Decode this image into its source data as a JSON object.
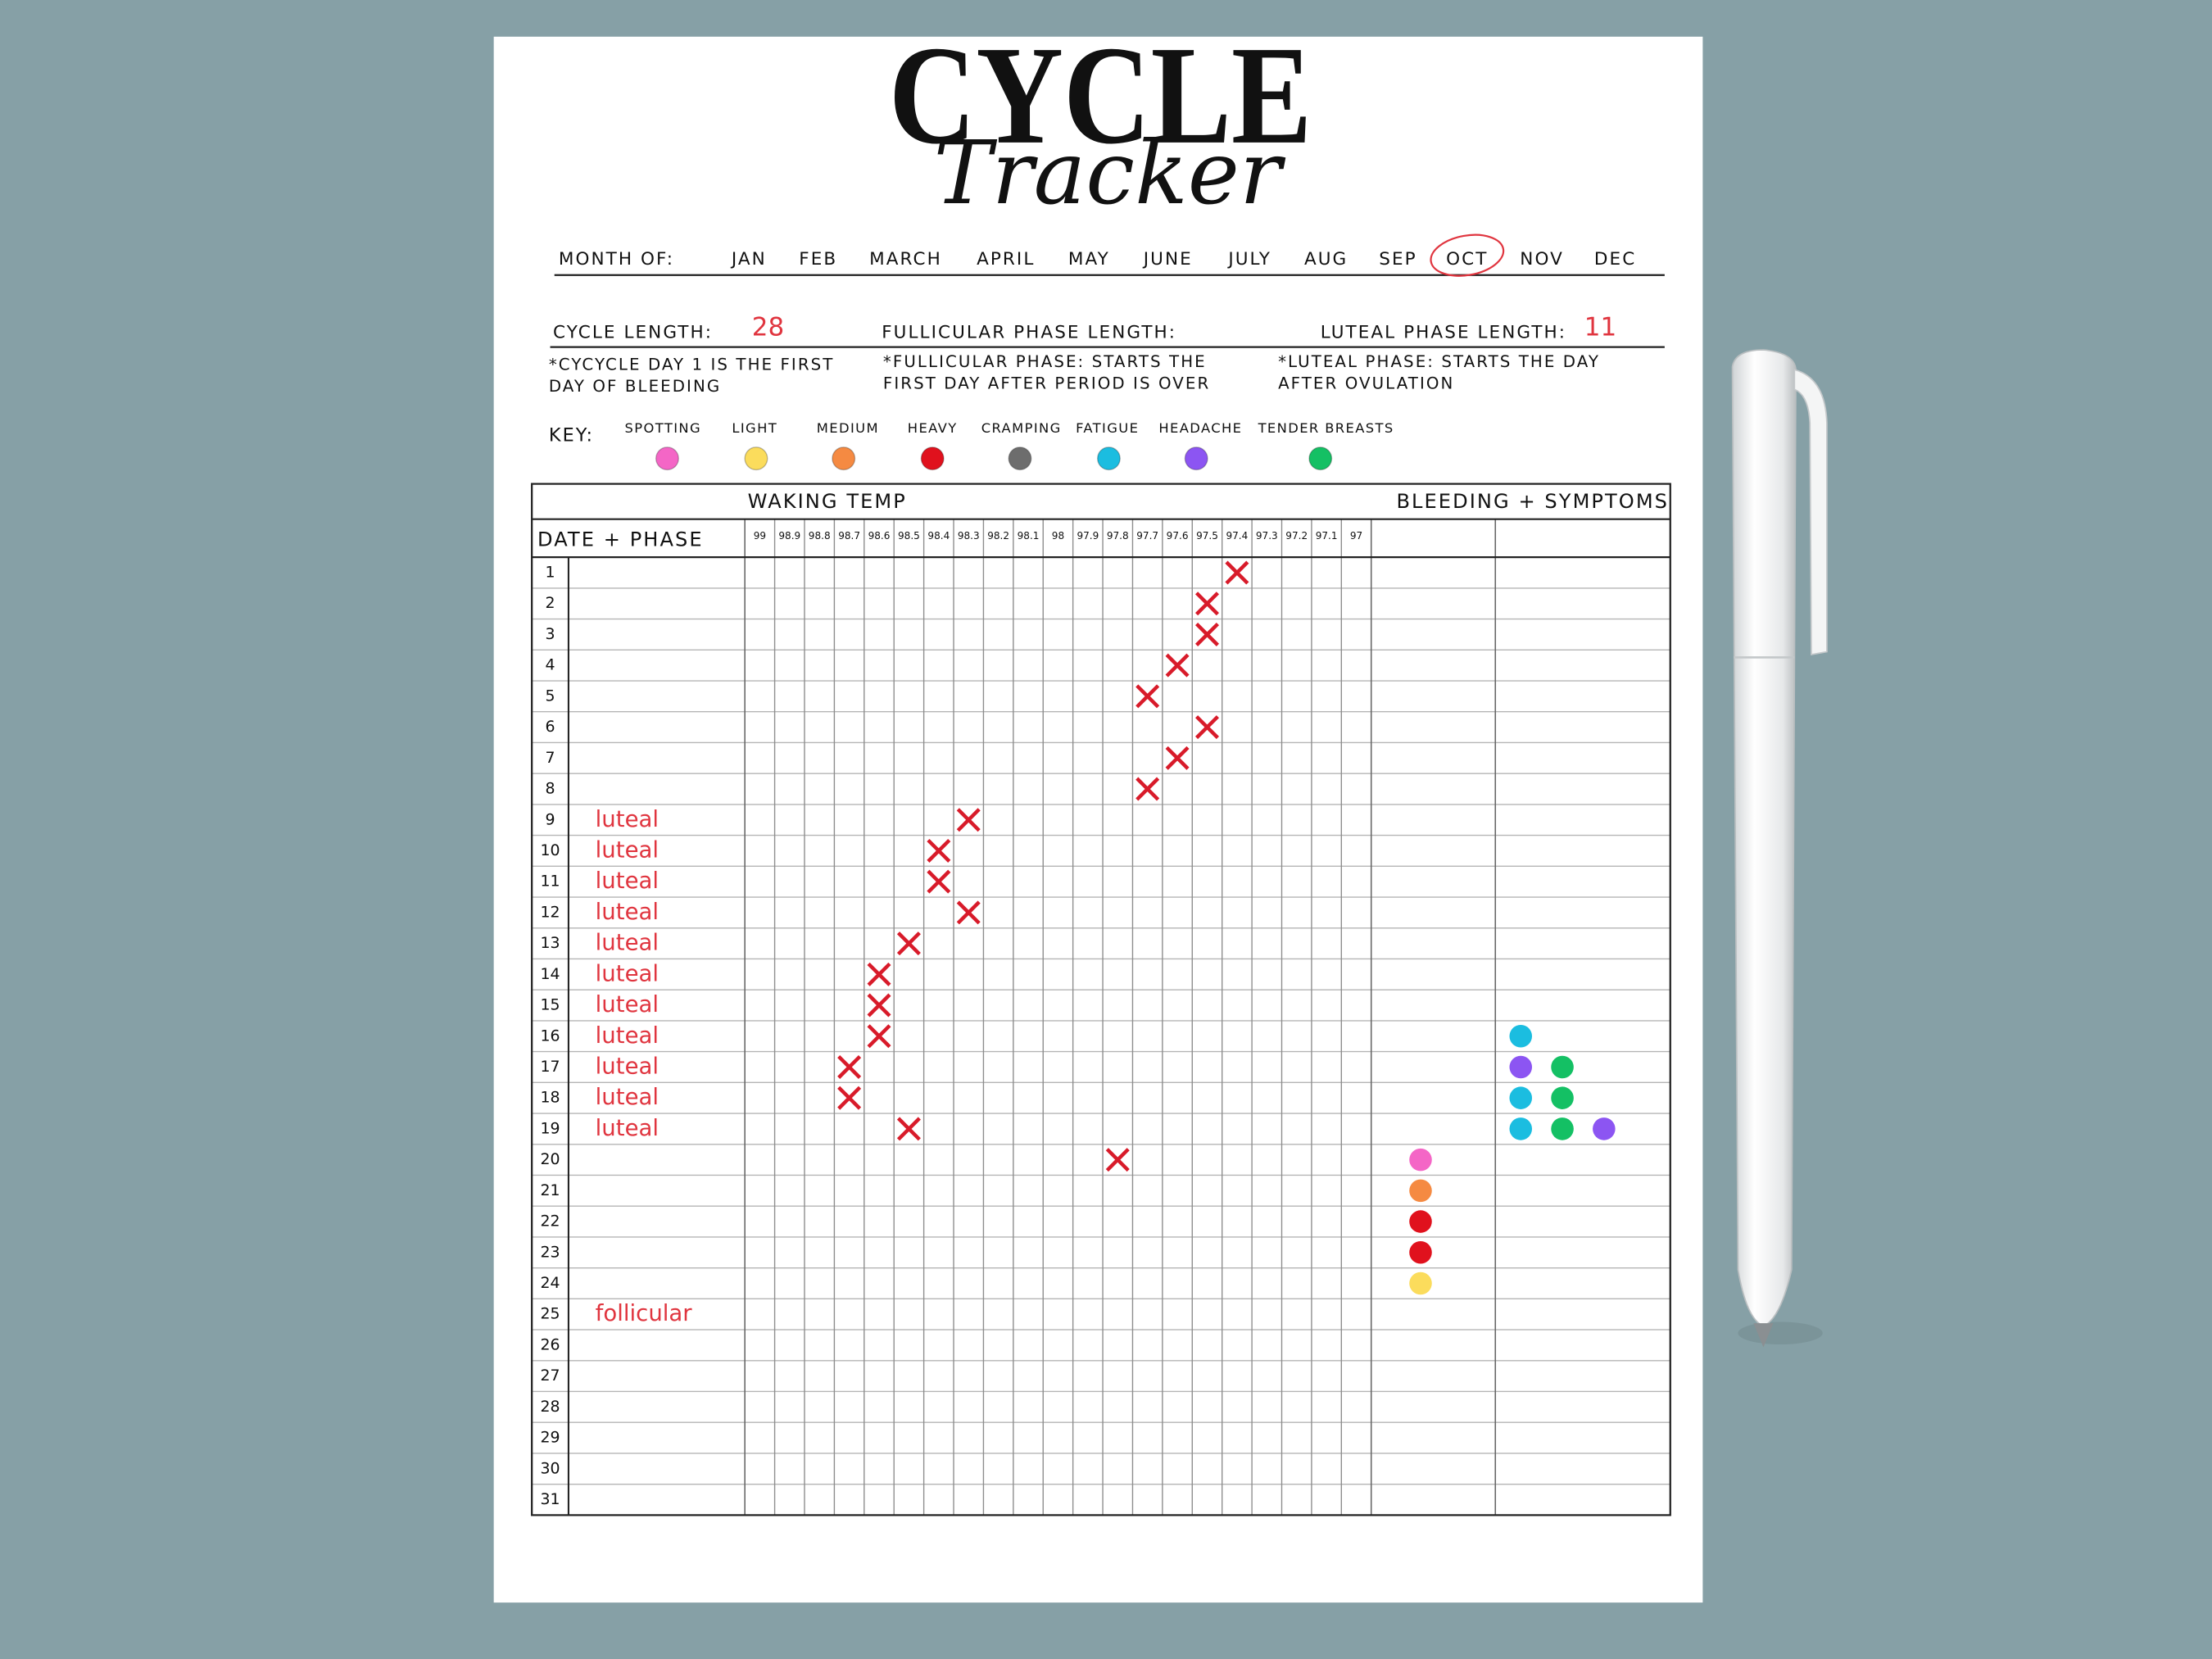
{
  "header": {
    "title": "CYCLE",
    "subtitle": "Tracker"
  },
  "month": {
    "label": "MONTH OF:",
    "months": [
      "JAN",
      "FEB",
      "MARCH",
      "APRIL",
      "MAY",
      "JUNE",
      "JULY",
      "AUG",
      "SEP",
      "OCT",
      "NOV",
      "DEC"
    ],
    "selected": "OCT"
  },
  "lengths": {
    "cycle_label": "CYCLE LENGTH:",
    "cycle_value": 28,
    "follicular_label": "FULLICULAR PHASE LENGTH:",
    "luteal_label": "LUTEAL PHASE LENGTH:",
    "luteal_value": 11
  },
  "notes": [
    [
      "*CYCYCLE DAY 1 IS THE FIRST",
      "DAY OF BLEEDING"
    ],
    [
      "*FULLICULAR PHASE: STARTS THE",
      "FIRST DAY AFTER PERIOD IS OVER"
    ],
    [
      "*LUTEAL PHASE: STARTS THE DAY",
      "AFTER OVULATION"
    ]
  ],
  "key": {
    "label": "KEY:",
    "items": [
      {
        "name": "SPOTTING",
        "color": "#f466c6"
      },
      {
        "name": "LIGHT",
        "color": "#fbdc5c"
      },
      {
        "name": "MEDIUM",
        "color": "#f58a42"
      },
      {
        "name": "HEAVY",
        "color": "#e0111d"
      },
      {
        "name": "CRAMPING",
        "color": "#6d6d6d"
      },
      {
        "name": "FATIGUE",
        "color": "#1bbde0"
      },
      {
        "name": "HEADACHE",
        "color": "#8c55f2"
      },
      {
        "name": "TENDER BREASTS",
        "color": "#14c064"
      }
    ]
  },
  "table": {
    "temp_header": "WAKING TEMP",
    "symptom_header": "BLEEDING + SYMPTOMS",
    "date_header": "DATE + PHASE",
    "mark_color": "#d81b2a",
    "phase_color": "#e0353f",
    "temp_ticks": [
      99,
      98.9,
      98.8,
      98.7,
      98.6,
      98.5,
      98.4,
      98.3,
      98.2,
      98.1,
      98,
      97.9,
      97.8,
      97.7,
      97.6,
      97.5,
      97.4,
      97.3,
      97.2,
      97.1,
      97
    ],
    "rows": [
      {
        "date": 1,
        "temp": 97.4
      },
      {
        "date": 2,
        "temp": 97.5
      },
      {
        "date": 3,
        "temp": 97.5
      },
      {
        "date": 4,
        "temp": 97.6
      },
      {
        "date": 5,
        "temp": 97.7
      },
      {
        "date": 6,
        "temp": 97.5
      },
      {
        "date": 7,
        "temp": 97.6
      },
      {
        "date": 8,
        "temp": 97.7
      },
      {
        "date": 9,
        "phase": "luteal",
        "temp": 98.3
      },
      {
        "date": 10,
        "phase": "luteal",
        "temp": 98.4
      },
      {
        "date": 11,
        "phase": "luteal",
        "temp": 98.4
      },
      {
        "date": 12,
        "phase": "luteal",
        "temp": 98.3
      },
      {
        "date": 13,
        "phase": "luteal",
        "temp": 98.5
      },
      {
        "date": 14,
        "phase": "luteal",
        "temp": 98.6
      },
      {
        "date": 15,
        "phase": "luteal",
        "temp": 98.6
      },
      {
        "date": 16,
        "phase": "luteal",
        "temp": 98.6,
        "symptoms": [
          "FATIGUE"
        ]
      },
      {
        "date": 17,
        "phase": "luteal",
        "temp": 98.7,
        "symptoms": [
          "HEADACHE",
          "TENDER BREASTS"
        ]
      },
      {
        "date": 18,
        "phase": "luteal",
        "temp": 98.7,
        "symptoms": [
          "FATIGUE",
          "TENDER BREASTS"
        ]
      },
      {
        "date": 19,
        "phase": "luteal",
        "temp": 98.5,
        "symptoms": [
          "FATIGUE",
          "TENDER BREASTS",
          "HEADACHE"
        ]
      },
      {
        "date": 20,
        "temp": 97.8,
        "bleeding": "SPOTTING"
      },
      {
        "date": 21,
        "bleeding": "MEDIUM"
      },
      {
        "date": 22,
        "bleeding": "HEAVY"
      },
      {
        "date": 23,
        "bleeding": "HEAVY"
      },
      {
        "date": 24,
        "bleeding": "LIGHT"
      },
      {
        "date": 25,
        "phase": "follicular"
      },
      {
        "date": 26
      },
      {
        "date": 27
      },
      {
        "date": 28
      },
      {
        "date": 29
      },
      {
        "date": 30
      },
      {
        "date": 31
      }
    ]
  }
}
